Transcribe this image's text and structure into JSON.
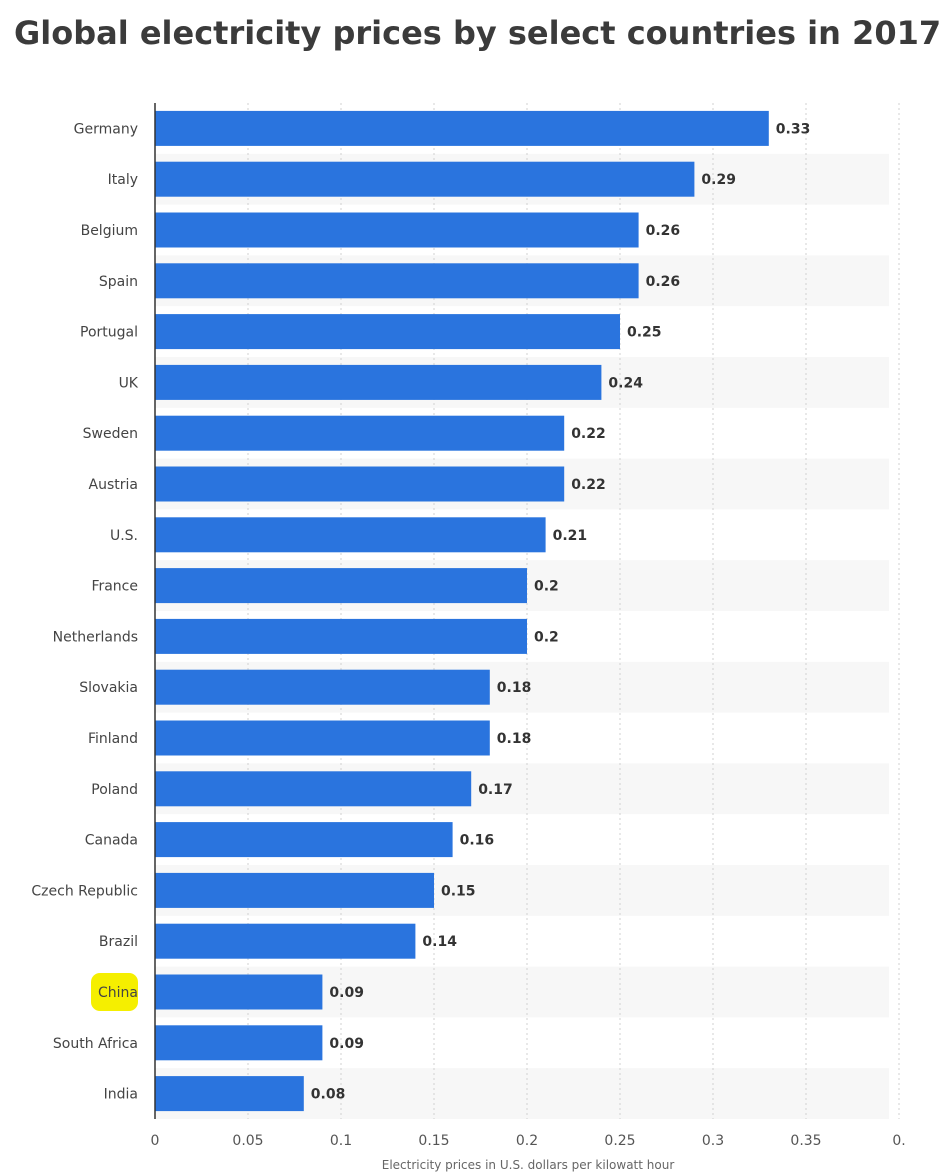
{
  "title": "Global electricity prices by select countries in 2017",
  "colors": {
    "bar": "#2a74de",
    "highlight": "#f5ef00",
    "band": "#f7f7f7",
    "grid": "#d0d0d0",
    "axis": "#333333"
  },
  "chart_data": {
    "type": "bar",
    "orientation": "horizontal",
    "title": "Global electricity prices by select countries in 2017",
    "xlabel": "Electricity prices in U.S. dollars per kilowatt hour",
    "ylabel": "",
    "xlim": [
      0,
      0.4
    ],
    "xticks": [
      "0",
      "0.05",
      "0.1",
      "0.15",
      "0.2",
      "0.25",
      "0.3",
      "0.35",
      "0."
    ],
    "grid": "vertical dotted",
    "highlighted_category": "China",
    "categories": [
      "Germany",
      "Italy",
      "Belgium",
      "Spain",
      "Portugal",
      "UK",
      "Sweden",
      "Austria",
      "U.S.",
      "France",
      "Netherlands",
      "Slovakia",
      "Finland",
      "Poland",
      "Canada",
      "Czech Republic",
      "Brazil",
      "China",
      "South Africa",
      "India"
    ],
    "values": [
      0.33,
      0.29,
      0.26,
      0.26,
      0.25,
      0.24,
      0.22,
      0.22,
      0.21,
      0.2,
      0.2,
      0.18,
      0.18,
      0.17,
      0.16,
      0.15,
      0.14,
      0.09,
      0.09,
      0.08
    ],
    "value_labels": [
      "0.33",
      "0.29",
      "0.26",
      "0.26",
      "0.25",
      "0.24",
      "0.22",
      "0.22",
      "0.21",
      "0.2",
      "0.2",
      "0.18",
      "0.18",
      "0.17",
      "0.16",
      "0.15",
      "0.14",
      "0.09",
      "0.09",
      "0.08"
    ]
  }
}
